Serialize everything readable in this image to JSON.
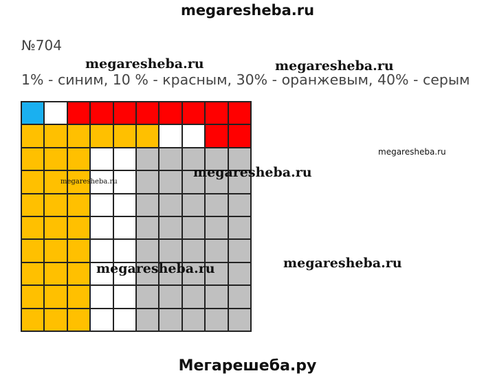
{
  "header": {
    "site_title": "megaresheba.ru"
  },
  "task": {
    "number": "№704",
    "text": "1% - синим, 10 % - красным, 30% - оранжевым, 40% - серым"
  },
  "watermarks": [
    "megaresheba.ru",
    "megaresheba.ru",
    "megaresheba.ru",
    "megaresheba.ru",
    "megaresheba.ru",
    "megaresheba.ru",
    "megaresheba.ru"
  ],
  "footer": {
    "site_title": "Мегарешеба.ру"
  },
  "grid": {
    "rows": 10,
    "cols": 10,
    "colors": {
      "blue": "#1ab0f0",
      "red": "#ff0000",
      "orange": "#ffc000",
      "gray": "#c0c0c0",
      "white": "#ffffff"
    },
    "cells": [
      [
        "blue",
        "white",
        "red",
        "red",
        "red",
        "red",
        "red",
        "red",
        "red",
        "red"
      ],
      [
        "orange",
        "orange",
        "orange",
        "orange",
        "orange",
        "orange",
        "white",
        "white",
        "red",
        "red"
      ],
      [
        "orange",
        "orange",
        "orange",
        "white",
        "white",
        "gray",
        "gray",
        "gray",
        "gray",
        "gray"
      ],
      [
        "orange",
        "orange",
        "orange",
        "white",
        "white",
        "gray",
        "gray",
        "gray",
        "gray",
        "gray"
      ],
      [
        "orange",
        "orange",
        "orange",
        "white",
        "white",
        "gray",
        "gray",
        "gray",
        "gray",
        "gray"
      ],
      [
        "orange",
        "orange",
        "orange",
        "white",
        "white",
        "gray",
        "gray",
        "gray",
        "gray",
        "gray"
      ],
      [
        "orange",
        "orange",
        "orange",
        "white",
        "white",
        "gray",
        "gray",
        "gray",
        "gray",
        "gray"
      ],
      [
        "orange",
        "orange",
        "orange",
        "white",
        "white",
        "gray",
        "gray",
        "gray",
        "gray",
        "gray"
      ],
      [
        "orange",
        "orange",
        "orange",
        "white",
        "white",
        "gray",
        "gray",
        "gray",
        "gray",
        "gray"
      ],
      [
        "orange",
        "orange",
        "orange",
        "white",
        "white",
        "gray",
        "gray",
        "gray",
        "gray",
        "gray"
      ]
    ]
  }
}
